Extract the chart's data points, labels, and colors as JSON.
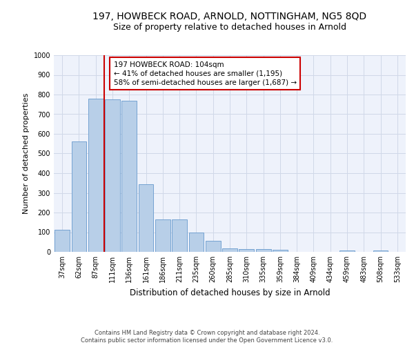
{
  "title": "197, HOWBECK ROAD, ARNOLD, NOTTINGHAM, NG5 8QD",
  "subtitle": "Size of property relative to detached houses in Arnold",
  "xlabel": "Distribution of detached houses by size in Arnold",
  "ylabel": "Number of detached properties",
  "footer_line1": "Contains HM Land Registry data © Crown copyright and database right 2024.",
  "footer_line2": "Contains public sector information licensed under the Open Government Licence v3.0.",
  "bar_labels": [
    "37sqm",
    "62sqm",
    "87sqm",
    "111sqm",
    "136sqm",
    "161sqm",
    "186sqm",
    "211sqm",
    "235sqm",
    "260sqm",
    "285sqm",
    "310sqm",
    "335sqm",
    "359sqm",
    "384sqm",
    "409sqm",
    "434sqm",
    "459sqm",
    "483sqm",
    "508sqm",
    "533sqm"
  ],
  "bar_heights": [
    112,
    560,
    778,
    775,
    770,
    345,
    165,
    165,
    98,
    55,
    18,
    15,
    15,
    12,
    0,
    0,
    0,
    8,
    0,
    8,
    0
  ],
  "bar_color": "#b8cfe8",
  "bar_edge_color": "#6699cc",
  "annotation_text": "197 HOWBECK ROAD: 104sqm\n← 41% of detached houses are smaller (1,195)\n58% of semi-detached houses are larger (1,687) →",
  "vline_color": "#cc0000",
  "annotation_box_color": "#cc0000",
  "ylim": [
    0,
    1000
  ],
  "yticks": [
    0,
    100,
    200,
    300,
    400,
    500,
    600,
    700,
    800,
    900,
    1000
  ],
  "grid_color": "#d0d8e8",
  "background_color": "#eef2fb",
  "title_fontsize": 10,
  "subtitle_fontsize": 9,
  "ylabel_fontsize": 8,
  "xlabel_fontsize": 8.5,
  "tick_fontsize": 7,
  "annotation_fontsize": 7.5,
  "footer_fontsize": 6
}
